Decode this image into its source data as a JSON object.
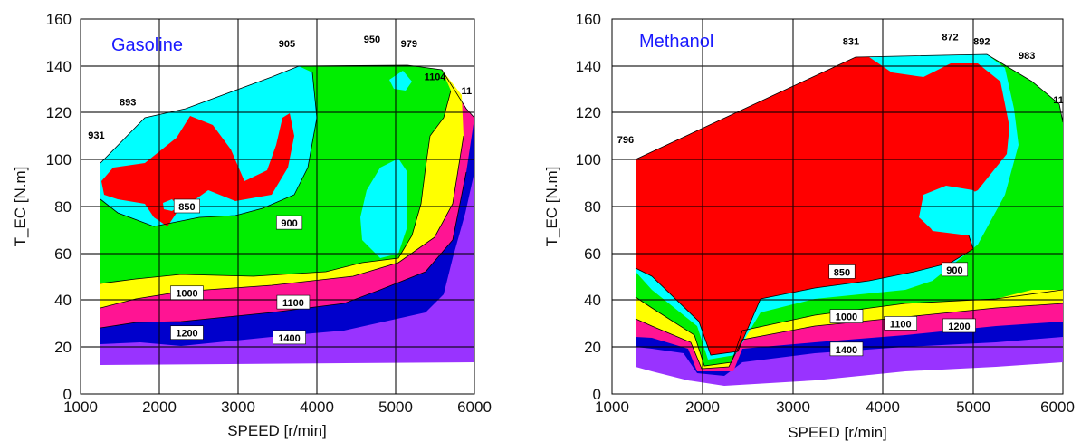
{
  "chart_data": [
    {
      "type": "heatmap",
      "title": "Gasoline",
      "xlabel": "SPEED [r/min]",
      "ylabel": "T_EC [N.m]",
      "xlim": [
        1000,
        6000
      ],
      "ylim": [
        0,
        160
      ],
      "x_ticks": [
        "1000",
        "2000",
        "3000",
        "4000",
        "5000",
        "6000"
      ],
      "y_ticks": [
        "0",
        "20",
        "40",
        "60",
        "80",
        "100",
        "120",
        "140",
        "160"
      ],
      "grid": true,
      "contour_levels": [
        "850",
        "900",
        "1000",
        "1100",
        "1200",
        "1400"
      ],
      "colors": {
        "850": "#ff0000",
        "900": "#00ffff",
        "950": "#00ee00",
        "1000": "#ffff00",
        "1100": "#ff1493",
        "1200": "#0000cc",
        "1400": "#9933ff"
      },
      "edge_labels": [
        {
          "text": "931",
          "speed": 1200,
          "torque": 109
        },
        {
          "text": "893",
          "speed": 1600,
          "torque": 123
        },
        {
          "text": "905",
          "speed": 3620,
          "torque": 148
        },
        {
          "text": "950",
          "speed": 4700,
          "torque": 150
        },
        {
          "text": "979",
          "speed": 5170,
          "torque": 148
        },
        {
          "text": "1104",
          "speed": 5500,
          "torque": 134
        },
        {
          "text": "11",
          "speed": 5900,
          "torque": 128
        }
      ],
      "contour_labels": [
        {
          "text": "850",
          "speed": 2350,
          "torque": 80
        },
        {
          "text": "900",
          "speed": 3650,
          "torque": 73
        },
        {
          "text": "1000",
          "speed": 2350,
          "torque": 43
        },
        {
          "text": "1100",
          "speed": 3700,
          "torque": 39
        },
        {
          "text": "1200",
          "speed": 2350,
          "torque": 26
        },
        {
          "text": "1400",
          "speed": 3650,
          "torque": 24
        }
      ]
    },
    {
      "type": "heatmap",
      "title": "Methanol",
      "xlabel": "SPEED [r/min]",
      "ylabel": "T_EC [N.m]",
      "xlim": [
        1000,
        6000
      ],
      "ylim": [
        0,
        160
      ],
      "x_ticks": [
        "1000",
        "2000",
        "3000",
        "4000",
        "5000",
        "6000"
      ],
      "y_ticks": [
        "0",
        "20",
        "40",
        "60",
        "80",
        "100",
        "120",
        "140",
        "160"
      ],
      "grid": true,
      "contour_levels": [
        "850",
        "900",
        "1000",
        "1100",
        "1200",
        "1400"
      ],
      "colors": {
        "850": "#ff0000",
        "900": "#00ffff",
        "950": "#00ee00",
        "1000": "#ffff00",
        "1100": "#ff1493",
        "1200": "#0000cc",
        "1400": "#9933ff"
      },
      "edge_labels": [
        {
          "text": "796",
          "speed": 1150,
          "torque": 107
        },
        {
          "text": "831",
          "speed": 3650,
          "torque": 149
        },
        {
          "text": "872",
          "speed": 4750,
          "torque": 151
        },
        {
          "text": "892",
          "speed": 5100,
          "torque": 149
        },
        {
          "text": "983",
          "speed": 5600,
          "torque": 143
        },
        {
          "text": "11",
          "speed": 5950,
          "torque": 124
        }
      ],
      "contour_labels": [
        {
          "text": "850",
          "speed": 3550,
          "torque": 52
        },
        {
          "text": "900",
          "speed": 4800,
          "torque": 53
        },
        {
          "text": "1000",
          "speed": 3600,
          "torque": 33
        },
        {
          "text": "1100",
          "speed": 4200,
          "torque": 30
        },
        {
          "text": "1200",
          "speed": 4850,
          "torque": 29
        },
        {
          "text": "1400",
          "speed": 3600,
          "torque": 19
        }
      ]
    }
  ]
}
